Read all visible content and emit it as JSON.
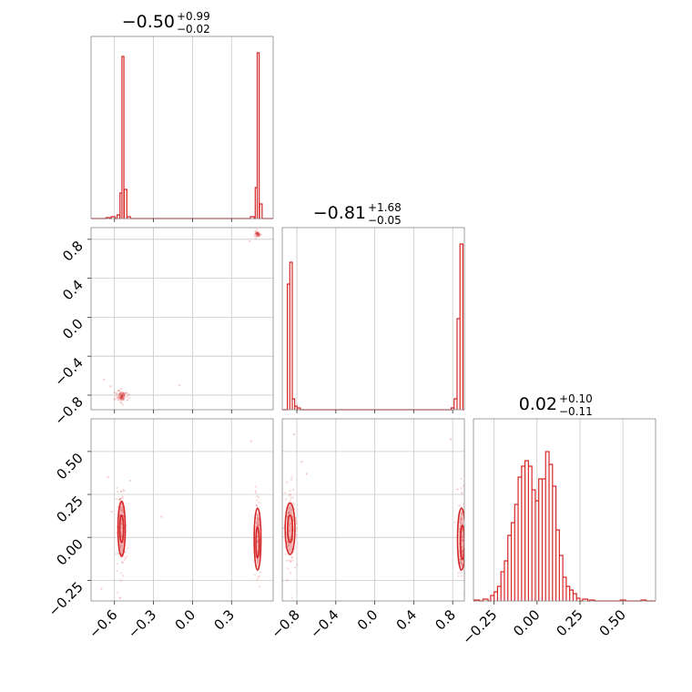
{
  "chart_data": {
    "type": "corner",
    "color": "#d62728",
    "parameters": [
      {
        "range": [
          -0.78,
          0.62
        ],
        "ticks": [
          "−0.6",
          "−0.3",
          "0.0",
          "0.3"
        ],
        "tick_values": [
          -0.6,
          -0.3,
          0.0,
          0.3
        ],
        "title": {
          "value": "−0.50",
          "plus": "+0.99",
          "minus": "−0.02"
        }
      },
      {
        "range": [
          -0.95,
          0.92
        ],
        "ticks": [
          "−0.8",
          "−0.4",
          "0.0",
          "0.4",
          "0.8"
        ],
        "tick_values": [
          -0.8,
          -0.4,
          0.0,
          0.4,
          0.8
        ],
        "title": {
          "value": "−0.81",
          "plus": "+1.68",
          "minus": "−0.05"
        }
      },
      {
        "range": [
          -0.37,
          0.69
        ],
        "ticks": [
          "−0.25",
          "0.00",
          "0.25",
          "0.50"
        ],
        "tick_values": [
          -0.25,
          0.0,
          0.25,
          0.5
        ],
        "title": {
          "value": "0.02",
          "plus": "+0.10",
          "minus": "−0.11"
        }
      }
    ],
    "histograms": [
      {
        "param": 0,
        "bins": [
          {
            "x": -0.65,
            "h": 0.005
          },
          {
            "x": -0.61,
            "h": 0.01
          },
          {
            "x": -0.57,
            "h": 0.02
          },
          {
            "x": -0.55,
            "h": 0.14
          },
          {
            "x": -0.535,
            "h": 0.89
          },
          {
            "x": -0.515,
            "h": 0.16
          },
          {
            "x": -0.49,
            "h": 0.01
          },
          {
            "x": 0.46,
            "h": 0.01
          },
          {
            "x": 0.49,
            "h": 0.17
          },
          {
            "x": 0.505,
            "h": 0.91
          },
          {
            "x": 0.525,
            "h": 0.08
          },
          {
            "x": 0.55,
            "h": 0.0
          }
        ]
      },
      {
        "param": 1,
        "bins": [
          {
            "x": -0.91,
            "h": 0.0
          },
          {
            "x": -0.885,
            "h": 0.69
          },
          {
            "x": -0.86,
            "h": 0.81
          },
          {
            "x": -0.835,
            "h": 0.06
          },
          {
            "x": -0.81,
            "h": 0.02
          },
          {
            "x": -0.78,
            "h": 0.01
          },
          {
            "x": 0.8,
            "h": 0.01
          },
          {
            "x": 0.83,
            "h": 0.06
          },
          {
            "x": 0.86,
            "h": 0.5
          },
          {
            "x": 0.89,
            "h": 0.91
          }
        ]
      },
      {
        "param": 2,
        "bins": [
          {
            "x": -0.35,
            "h": 0.005
          },
          {
            "x": -0.3,
            "h": 0.01
          },
          {
            "x": -0.26,
            "h": 0.03
          },
          {
            "x": -0.24,
            "h": 0.05
          },
          {
            "x": -0.22,
            "h": 0.08
          },
          {
            "x": -0.2,
            "h": 0.16
          },
          {
            "x": -0.18,
            "h": 0.22
          },
          {
            "x": -0.16,
            "h": 0.36
          },
          {
            "x": -0.14,
            "h": 0.43
          },
          {
            "x": -0.12,
            "h": 0.53
          },
          {
            "x": -0.1,
            "h": 0.68
          },
          {
            "x": -0.08,
            "h": 0.74
          },
          {
            "x": -0.06,
            "h": 0.77
          },
          {
            "x": -0.04,
            "h": 0.74
          },
          {
            "x": -0.02,
            "h": 0.61
          },
          {
            "x": 0.0,
            "h": 0.55
          },
          {
            "x": 0.02,
            "h": 0.67
          },
          {
            "x": 0.04,
            "h": 0.67
          },
          {
            "x": 0.06,
            "h": 0.82
          },
          {
            "x": 0.08,
            "h": 0.75
          },
          {
            "x": 0.1,
            "h": 0.63
          },
          {
            "x": 0.12,
            "h": 0.39
          },
          {
            "x": 0.14,
            "h": 0.25
          },
          {
            "x": 0.16,
            "h": 0.13
          },
          {
            "x": 0.18,
            "h": 0.08
          },
          {
            "x": 0.2,
            "h": 0.06
          },
          {
            "x": 0.22,
            "h": 0.04
          },
          {
            "x": 0.24,
            "h": 0.015
          },
          {
            "x": 0.28,
            "h": 0.01
          },
          {
            "x": 0.32,
            "h": 0.005
          },
          {
            "x": 0.5,
            "h": 0.005
          },
          {
            "x": 0.62,
            "h": 0.005
          }
        ]
      }
    ],
    "panels": [
      {
        "x_param": 0,
        "y_param": 1,
        "clusters": [
          {
            "cx": -0.545,
            "cy": -0.81,
            "sx": 0.022,
            "sy": 0.035,
            "n": 70
          },
          {
            "cx": 0.5,
            "cy": 0.86,
            "sx": 0.014,
            "sy": 0.018,
            "n": 40
          }
        ],
        "stray_points": [
          [
            -0.68,
            -0.64
          ],
          [
            -0.63,
            -0.71
          ],
          [
            -0.6,
            -0.77
          ],
          [
            -0.5,
            -0.85
          ],
          [
            -0.1,
            -0.7
          ],
          [
            0.44,
            0.78
          ]
        ],
        "contours": []
      },
      {
        "x_param": 0,
        "y_param": 2,
        "clusters": [
          {
            "cx": -0.545,
            "cy": 0.05,
            "sx": 0.018,
            "sy": 0.13,
            "n": 110
          },
          {
            "cx": 0.5,
            "cy": -0.01,
            "sx": 0.012,
            "sy": 0.13,
            "n": 90
          }
        ],
        "stray_points": [
          [
            -0.65,
            0.35
          ],
          [
            -0.62,
            0.15
          ],
          [
            -0.48,
            0.33
          ],
          [
            -0.24,
            0.12
          ],
          [
            0.45,
            0.56
          ],
          [
            -0.7,
            -0.3
          ]
        ],
        "contours": [
          {
            "cx": -0.545,
            "cy": 0.05,
            "rx": 0.014,
            "ry": 0.08
          },
          {
            "cx": -0.545,
            "cy": 0.05,
            "rx": 0.028,
            "ry": 0.16
          },
          {
            "cx": 0.5,
            "cy": -0.03,
            "rx": 0.013,
            "ry": 0.09
          },
          {
            "cx": 0.5,
            "cy": -0.01,
            "rx": 0.026,
            "ry": 0.18
          }
        ]
      },
      {
        "x_param": 1,
        "y_param": 2,
        "clusters": [
          {
            "cx": -0.87,
            "cy": 0.05,
            "sx": 0.03,
            "sy": 0.12,
            "n": 110
          },
          {
            "cx": 0.89,
            "cy": -0.01,
            "sx": 0.02,
            "sy": 0.14,
            "n": 90
          }
        ],
        "stray_points": [
          [
            -0.75,
            0.44
          ],
          [
            -0.7,
            0.37
          ],
          [
            -0.83,
            0.6
          ],
          [
            0.78,
            0.57
          ],
          [
            0.85,
            0.28
          ],
          [
            -0.9,
            -0.25
          ]
        ],
        "contours": [
          {
            "cx": -0.87,
            "cy": 0.05,
            "rx": 0.025,
            "ry": 0.08
          },
          {
            "cx": -0.87,
            "cy": 0.05,
            "rx": 0.05,
            "ry": 0.15
          },
          {
            "cx": 0.9,
            "cy": -0.03,
            "rx": 0.02,
            "ry": 0.1
          },
          {
            "cx": 0.89,
            "cy": -0.01,
            "rx": 0.04,
            "ry": 0.18
          }
        ]
      }
    ]
  }
}
